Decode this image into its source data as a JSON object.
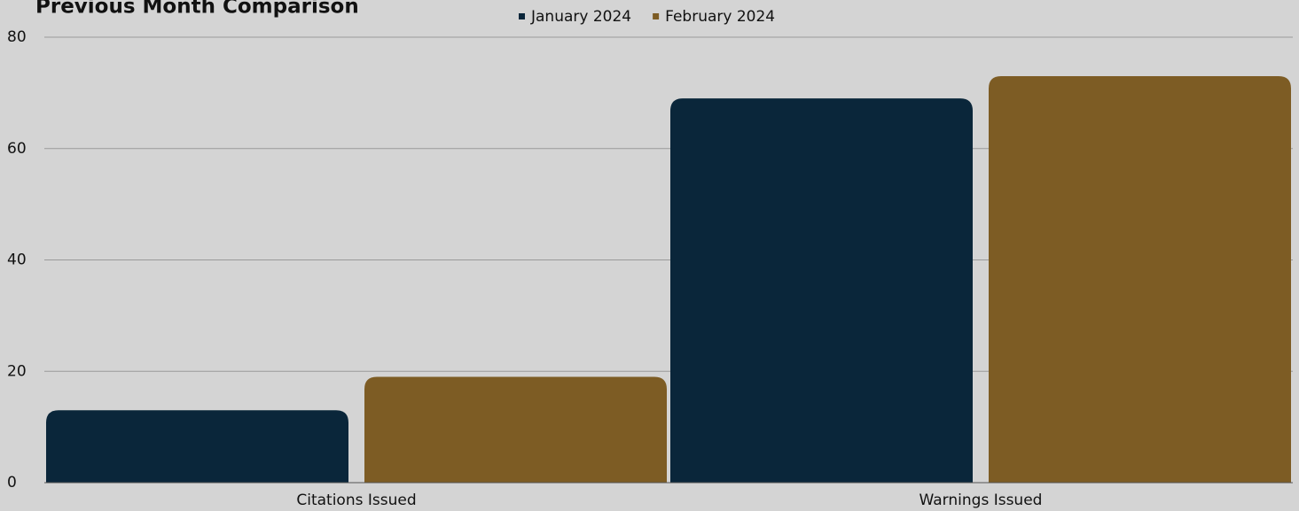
{
  "chart_data": {
    "type": "bar",
    "title": "Previous Month Comparison",
    "categories": [
      "Citations Issued",
      "Warnings Issued"
    ],
    "series": [
      {
        "name": "January 2024",
        "color": "#0a263a",
        "values": [
          13,
          69
        ]
      },
      {
        "name": "February 2024",
        "color": "#7d5c24",
        "values": [
          19,
          73
        ]
      }
    ],
    "ylim": [
      0,
      80
    ],
    "yticks": [
      0,
      20,
      40,
      60,
      80
    ],
    "grid": true,
    "legend": "top"
  }
}
